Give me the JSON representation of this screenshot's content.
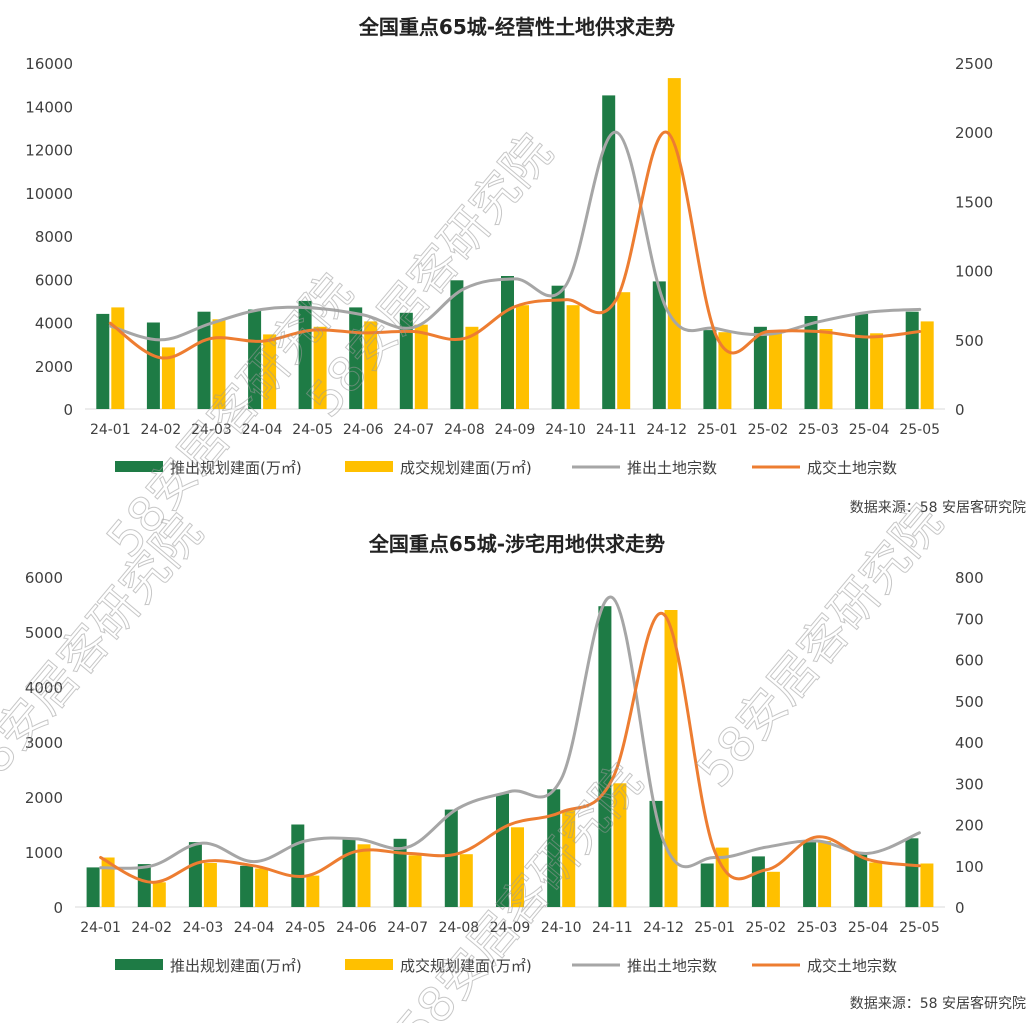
{
  "source_note": "数据来源：58 安居客研究院",
  "watermark_text": "58安居客研究院",
  "colors": {
    "supply_bar": "#1e7b45",
    "deal_bar": "#ffc000",
    "supply_line": "#a6a6a6",
    "deal_line": "#ed7d31",
    "axis": "#d9d9d9"
  },
  "chart_data": [
    {
      "type": "bar",
      "title": "全国重点65城-经营性土地供求走势",
      "categories": [
        "24-01",
        "24-02",
        "24-03",
        "24-04",
        "24-05",
        "24-06",
        "24-07",
        "24-08",
        "24-09",
        "24-10",
        "24-11",
        "24-12",
        "25-01",
        "25-02",
        "25-03",
        "25-04",
        "25-05"
      ],
      "ylim": [
        0,
        16000
      ],
      "yticks": [
        0,
        2000,
        4000,
        6000,
        8000,
        10000,
        12000,
        14000,
        16000
      ],
      "y2lim": [
        0,
        2500
      ],
      "y2ticks": [
        0,
        500,
        1000,
        1500,
        2000,
        2500
      ],
      "legend_position": "bottom",
      "grid": false,
      "series": [
        {
          "name": "推出规划建面(万㎡)",
          "kind": "bar",
          "axis": "left",
          "values": [
            4400,
            4000,
            4500,
            4600,
            5000,
            4700,
            4450,
            5950,
            6150,
            5700,
            14500,
            5900,
            3650,
            3800,
            4300,
            4400,
            4500
          ]
        },
        {
          "name": "成交规划建面(万㎡)",
          "kind": "bar",
          "axis": "left",
          "values": [
            4700,
            2850,
            4150,
            3450,
            3800,
            4050,
            3900,
            3800,
            4800,
            4800,
            5400,
            15300,
            3550,
            3600,
            3700,
            3500,
            4050
          ]
        },
        {
          "name": "推出土地宗数",
          "kind": "line",
          "axis": "right",
          "values": [
            600,
            500,
            620,
            720,
            730,
            680,
            590,
            870,
            940,
            890,
            2000,
            720,
            580,
            540,
            630,
            700,
            720
          ]
        },
        {
          "name": "成交土地宗数",
          "kind": "line",
          "axis": "right",
          "values": [
            620,
            370,
            510,
            490,
            570,
            550,
            560,
            510,
            740,
            790,
            790,
            2000,
            510,
            560,
            560,
            520,
            560
          ]
        }
      ]
    },
    {
      "type": "bar",
      "title": "全国重点65城-涉宅用地供求走势",
      "categories": [
        "24-01",
        "24-02",
        "24-03",
        "24-04",
        "24-05",
        "24-06",
        "24-07",
        "24-08",
        "24-09",
        "24-10",
        "24-11",
        "24-12",
        "25-01",
        "25-02",
        "25-03",
        "25-04",
        "25-05"
      ],
      "ylim": [
        0,
        6000
      ],
      "yticks": [
        0,
        1000,
        2000,
        3000,
        4000,
        5000,
        6000
      ],
      "y2lim": [
        0,
        800
      ],
      "y2ticks": [
        0,
        100,
        200,
        300,
        400,
        500,
        600,
        700,
        800
      ],
      "legend_position": "bottom",
      "grid": false,
      "series": [
        {
          "name": "推出规划建面(万㎡)",
          "kind": "bar",
          "axis": "left",
          "values": [
            720,
            780,
            1180,
            750,
            1500,
            1230,
            1240,
            1770,
            2060,
            2140,
            5470,
            1930,
            790,
            920,
            1190,
            1000,
            1250
          ]
        },
        {
          "name": "成交规划建面(万㎡)",
          "kind": "bar",
          "axis": "left",
          "values": [
            900,
            450,
            800,
            700,
            570,
            1140,
            940,
            960,
            1450,
            1760,
            2250,
            5400,
            1080,
            640,
            1200,
            810,
            790
          ]
        },
        {
          "name": "推出土地宗数",
          "kind": "line",
          "axis": "right",
          "values": [
            95,
            100,
            155,
            110,
            160,
            165,
            145,
            240,
            280,
            310,
            750,
            160,
            120,
            145,
            160,
            130,
            180
          ]
        },
        {
          "name": "成交土地宗数",
          "kind": "line",
          "axis": "right",
          "values": [
            120,
            60,
            110,
            100,
            75,
            135,
            130,
            130,
            200,
            230,
            310,
            710,
            135,
            90,
            170,
            115,
            100
          ]
        }
      ]
    }
  ]
}
